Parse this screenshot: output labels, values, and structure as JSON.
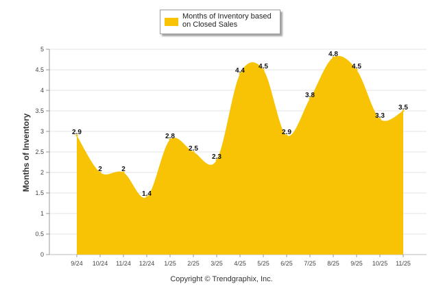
{
  "chart_data": {
    "type": "area",
    "title": "",
    "categories": [
      "9/24",
      "10/24",
      "11/24",
      "12/24",
      "1/25",
      "2/25",
      "3/25",
      "4/25",
      "5/25",
      "6/25",
      "7/25",
      "8/25",
      "9/25",
      "10/25",
      "11/25"
    ],
    "series": [
      {
        "name": "Months of Inventory based on Closed Sales",
        "values": [
          2.9,
          2,
          2,
          1.4,
          2.8,
          2.5,
          2.3,
          4.4,
          4.5,
          2.9,
          3.8,
          4.8,
          4.5,
          3.3,
          3.5
        ],
        "color": "#f7c304"
      }
    ],
    "data_labels": [
      "2.9",
      "2",
      "2",
      "1.4",
      "2.8",
      "2.5",
      "2.3",
      "4.4",
      "4.5",
      "2.9",
      "3.8",
      "4.8",
      "4.5",
      "3.3",
      "3.5"
    ],
    "ylabel": "Months of Inventory",
    "xlabel": "",
    "ylim": [
      0,
      5
    ],
    "yticks": [
      "0",
      "0.5",
      "1",
      "1.5",
      "2",
      "2.5",
      "3",
      "3.5",
      "4",
      "4.5",
      "5"
    ],
    "grid": true,
    "legend_position": "top-center"
  },
  "legend": {
    "label": "Months of Inventory based on Closed Sales"
  },
  "footer": {
    "copyright": "Copyright © Trendgraphix, Inc."
  }
}
